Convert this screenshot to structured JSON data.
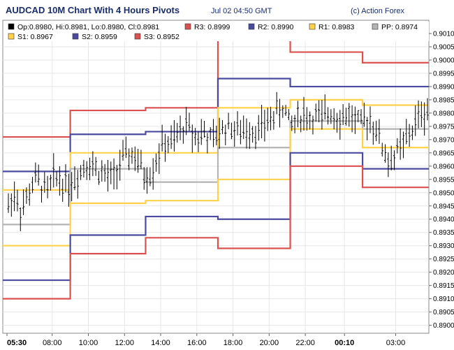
{
  "header": {
    "title": "AUDCAD 10M Chart With 4 Hours Pivots",
    "datetime": "Jul 02 04:50 GMT",
    "source": "(c) Action Forex"
  },
  "legend": [
    {
      "label": "Op:0.8980, Hi:0.8981, Lo:0.8980, Cl:0.8981",
      "color": "#000000"
    },
    {
      "label": "R3: 0.8999",
      "color": "#dc5050"
    },
    {
      "label": "R2: 0.8990",
      "color": "#4a4aa0"
    },
    {
      "label": "R1: 0.8983",
      "color": "#ffd24a"
    },
    {
      "label": "PP: 0.8974",
      "color": "#b4b4b4"
    },
    {
      "label": "S1: 0.8967",
      "color": "#ffd24a"
    },
    {
      "label": "S2: 0.8959",
      "color": "#4a4aa0"
    },
    {
      "label": "S3: 0.8952",
      "color": "#dc5050"
    }
  ],
  "chart_data": {
    "type": "line",
    "title": "AUDCAD 10M Chart With 4 Hours Pivots",
    "ylim": [
      0.8897,
      0.9015
    ],
    "y_ticks": [
      "0.8900",
      "0.8905",
      "0.8910",
      "0.8915",
      "0.8920",
      "0.8925",
      "0.8930",
      "0.8935",
      "0.8940",
      "0.8945",
      "0.8950",
      "0.8955",
      "0.8960",
      "0.8965",
      "0.8970",
      "0.8975",
      "0.8980",
      "0.8985",
      "0.8990",
      "0.8995",
      "0.9000",
      "0.9005",
      "0.9010"
    ],
    "x_ticks": [
      {
        "label": "05:30",
        "bold": true
      },
      {
        "label": "08:00",
        "bold": false
      },
      {
        "label": "10:00",
        "bold": false
      },
      {
        "label": "12:00",
        "bold": false
      },
      {
        "label": "14:00",
        "bold": false
      },
      {
        "label": "16:00",
        "bold": false
      },
      {
        "label": "18:00",
        "bold": false
      },
      {
        "label": "20:00",
        "bold": false
      },
      {
        "label": "22:00",
        "bold": false
      },
      {
        "label": "00:10",
        "bold": true
      },
      {
        "label": "03:00",
        "bold": false
      }
    ],
    "period_breaks": [
      "09:00",
      "13:10",
      "17:10",
      "21:10",
      "01:10"
    ],
    "series": [
      {
        "name": "R3",
        "color": "#dc5050",
        "values": [
          0.8971,
          0.8981,
          0.8982,
          0.9009,
          0.9003,
          0.8999
        ]
      },
      {
        "name": "R2",
        "color": "#4a4aa0",
        "values": [
          0.8958,
          0.8972,
          0.8973,
          0.8993,
          0.899,
          0.899
        ]
      },
      {
        "name": "R1",
        "color": "#ffd24a",
        "values": [
          0.8951,
          0.8965,
          0.8965,
          0.8982,
          0.8985,
          0.8983
        ]
      },
      {
        "name": "PP",
        "color": "#b4b4b4",
        "values": [
          0.8938,
          0.8959,
          0.8954,
          0.8967,
          0.8977,
          0.8974
        ]
      },
      {
        "name": "S1",
        "color": "#ffd24a",
        "values": [
          0.893,
          0.8946,
          0.8947,
          0.8955,
          0.8974,
          0.8967
        ]
      },
      {
        "name": "S2",
        "color": "#4a4aa0",
        "values": [
          0.8917,
          0.8934,
          0.8941,
          0.894,
          0.8965,
          0.8959
        ]
      },
      {
        "name": "S3",
        "color": "#dc5050",
        "values": [
          0.891,
          0.8927,
          0.8933,
          0.8929,
          0.896,
          0.8952
        ]
      }
    ],
    "price_path": [
      0.8945,
      0.895,
      0.8943,
      0.8949,
      0.8955,
      0.8953,
      0.895,
      0.8956,
      0.8955,
      0.8953,
      0.8955,
      0.8958,
      0.8962,
      0.896,
      0.8958,
      0.8956,
      0.8955,
      0.8961,
      0.8963,
      0.8965,
      0.896,
      0.8956,
      0.8959,
      0.8965,
      0.8969,
      0.8968,
      0.8972,
      0.8976,
      0.8973,
      0.8971,
      0.8973,
      0.8969,
      0.8972,
      0.8975,
      0.8975,
      0.8973,
      0.8973,
      0.8975,
      0.8973,
      0.8975,
      0.8978,
      0.898,
      0.8983,
      0.8975,
      0.8978,
      0.898,
      0.8978,
      0.8979,
      0.8977,
      0.8981,
      0.898,
      0.8978,
      0.898,
      0.8977,
      0.8975,
      0.8979,
      0.8975,
      0.8968,
      0.8962,
      0.8964,
      0.8967,
      0.8971,
      0.8975,
      0.898,
      0.8981
    ]
  }
}
